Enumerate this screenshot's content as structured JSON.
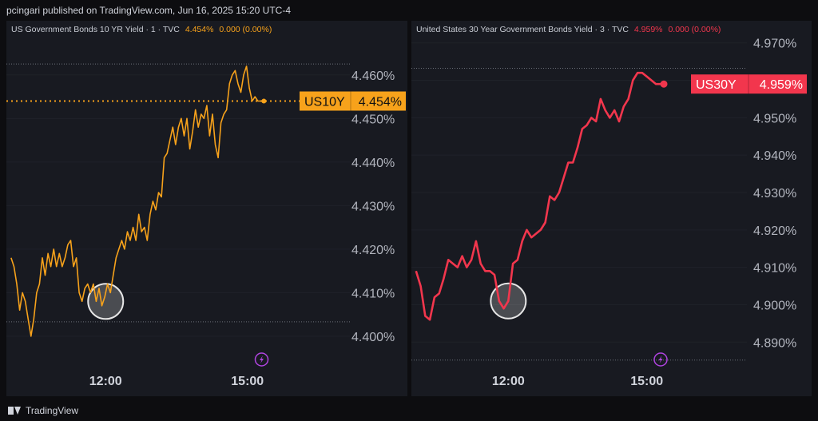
{
  "header": {
    "text": "pcingari published on TradingView.com, Jun 16, 2025 15:20 UTC-4"
  },
  "footer": {
    "brand": "TradingView",
    "logo_icon": "tradingview-logo-icon"
  },
  "chart_data": [
    {
      "type": "line",
      "legend": {
        "title": "US Government Bonds 10 YR Yield · 1 · TVC",
        "value": "4.454%",
        "change": "0.000 (0.00%)"
      },
      "color": "#f7a21b",
      "ticker": "US10Y",
      "last_label": "4.454%",
      "last_value": 4.454,
      "ylim": [
        4.3965,
        4.4695
      ],
      "y_ticks": [
        4.4,
        4.41,
        4.42,
        4.43,
        4.44,
        4.45,
        4.46
      ],
      "y_tick_labels": [
        "4.400%",
        "4.410%",
        "4.420%",
        "4.430%",
        "4.440%",
        "4.450%",
        "4.460%"
      ],
      "xlim": [
        9.9,
        17.1
      ],
      "x_ticks": [
        12,
        15
      ],
      "x_tick_labels": [
        "12:00",
        "15:00"
      ],
      "dotted_levels": [
        4.4625,
        4.4033
      ],
      "highlight": {
        "x": 12.0,
        "y": 4.408
      },
      "event_icon": {
        "x": 15.3,
        "name": "lightning-event-icon"
      },
      "series": [
        {
          "x": [
            10.0,
            10.06,
            10.12,
            10.18,
            10.24,
            10.3,
            10.36,
            10.42,
            10.48,
            10.54,
            10.6,
            10.66,
            10.72,
            10.78,
            10.84,
            10.9,
            10.96,
            11.02,
            11.08,
            11.14,
            11.2,
            11.26,
            11.32,
            11.38,
            11.44,
            11.5,
            11.56,
            11.62,
            11.68,
            11.74,
            11.8,
            11.86,
            11.92,
            11.98,
            12.04,
            12.1,
            12.16,
            12.22,
            12.28,
            12.34,
            12.4,
            12.46,
            12.52,
            12.58,
            12.64,
            12.7,
            12.76,
            12.82,
            12.88,
            12.94,
            13.0,
            13.06,
            13.12,
            13.18,
            13.24,
            13.3,
            13.36,
            13.42,
            13.48,
            13.54,
            13.6,
            13.66,
            13.72,
            13.78,
            13.84,
            13.9,
            13.96,
            14.02,
            14.08,
            14.14,
            14.2,
            14.26,
            14.32,
            14.38,
            14.44,
            14.5,
            14.56,
            14.62,
            14.68,
            14.74,
            14.8,
            14.86,
            14.92,
            14.98,
            15.04,
            15.1,
            15.16,
            15.22,
            15.28
          ],
          "y": [
            4.418,
            4.416,
            4.412,
            4.406,
            4.41,
            4.408,
            4.404,
            4.4,
            4.404,
            4.41,
            4.412,
            4.418,
            4.414,
            4.419,
            4.416,
            4.42,
            4.416,
            4.419,
            4.416,
            4.418,
            4.421,
            4.422,
            4.416,
            4.418,
            4.41,
            4.408,
            4.411,
            4.412,
            4.41,
            4.412,
            4.408,
            4.411,
            4.407,
            4.409,
            4.412,
            4.41,
            4.414,
            4.418,
            4.42,
            4.422,
            4.42,
            4.424,
            4.422,
            4.425,
            4.422,
            4.428,
            4.424,
            4.425,
            4.422,
            4.428,
            4.431,
            4.429,
            4.433,
            4.432,
            4.441,
            4.442,
            4.445,
            4.448,
            4.444,
            4.448,
            4.45,
            4.446,
            4.45,
            4.443,
            4.447,
            4.452,
            4.448,
            4.451,
            4.45,
            4.453,
            4.446,
            4.451,
            4.444,
            4.441,
            4.449,
            4.451,
            4.452,
            4.458,
            4.46,
            4.461,
            4.458,
            4.456,
            4.46,
            4.462,
            4.457,
            4.454,
            4.455,
            4.454,
            4.454
          ]
        }
      ]
    },
    {
      "type": "line",
      "legend": {
        "title": "United States 30 Year Government Bonds Yield · 3 · TVC",
        "value": "4.959%",
        "change": "0.000 (0.00%)"
      },
      "color": "#f2364d",
      "ticker": "US30Y",
      "last_label": "4.959%",
      "last_value": 4.959,
      "ylim": [
        4.8875,
        4.9725
      ],
      "y_ticks": [
        4.89,
        4.9,
        4.91,
        4.92,
        4.93,
        4.94,
        4.95,
        4.96,
        4.97
      ],
      "y_tick_labels": [
        "4.890%",
        "4.900%",
        "4.910%",
        "4.920%",
        "4.930%",
        "4.940%",
        "4.950%",
        "",
        "4.970%"
      ],
      "xlim": [
        9.9,
        17.1
      ],
      "x_ticks": [
        12,
        15
      ],
      "x_tick_labels": [
        "12:00",
        "15:00"
      ],
      "dotted_levels": [
        4.9632,
        4.8852
      ],
      "highlight": {
        "x": 12.0,
        "y": 4.901
      },
      "event_icon": {
        "x": 15.3,
        "name": "lightning-event-icon"
      },
      "series": [
        {
          "x": [
            10.0,
            10.1,
            10.2,
            10.3,
            10.4,
            10.5,
            10.6,
            10.7,
            10.8,
            10.9,
            11.0,
            11.1,
            11.2,
            11.3,
            11.4,
            11.5,
            11.6,
            11.7,
            11.8,
            11.9,
            12.0,
            12.1,
            12.2,
            12.3,
            12.4,
            12.5,
            12.6,
            12.7,
            12.8,
            12.9,
            13.0,
            13.1,
            13.2,
            13.3,
            13.4,
            13.5,
            13.6,
            13.7,
            13.8,
            13.9,
            14.0,
            14.1,
            14.2,
            14.3,
            14.4,
            14.5,
            14.6,
            14.7,
            14.8,
            14.9,
            15.0,
            15.1,
            15.2,
            15.3
          ],
          "y": [
            4.909,
            4.905,
            4.897,
            4.896,
            4.902,
            4.903,
            4.907,
            4.912,
            4.911,
            4.91,
            4.913,
            4.91,
            4.912,
            4.917,
            4.911,
            4.909,
            4.909,
            4.908,
            4.901,
            4.899,
            4.901,
            4.911,
            4.912,
            4.917,
            4.92,
            4.918,
            4.919,
            4.92,
            4.922,
            4.929,
            4.928,
            4.93,
            4.934,
            4.938,
            4.938,
            4.942,
            4.947,
            4.948,
            4.95,
            4.949,
            4.955,
            4.952,
            4.95,
            4.952,
            4.949,
            4.953,
            4.955,
            4.96,
            4.962,
            4.962,
            4.961,
            4.96,
            4.959,
            4.959
          ]
        }
      ]
    }
  ]
}
